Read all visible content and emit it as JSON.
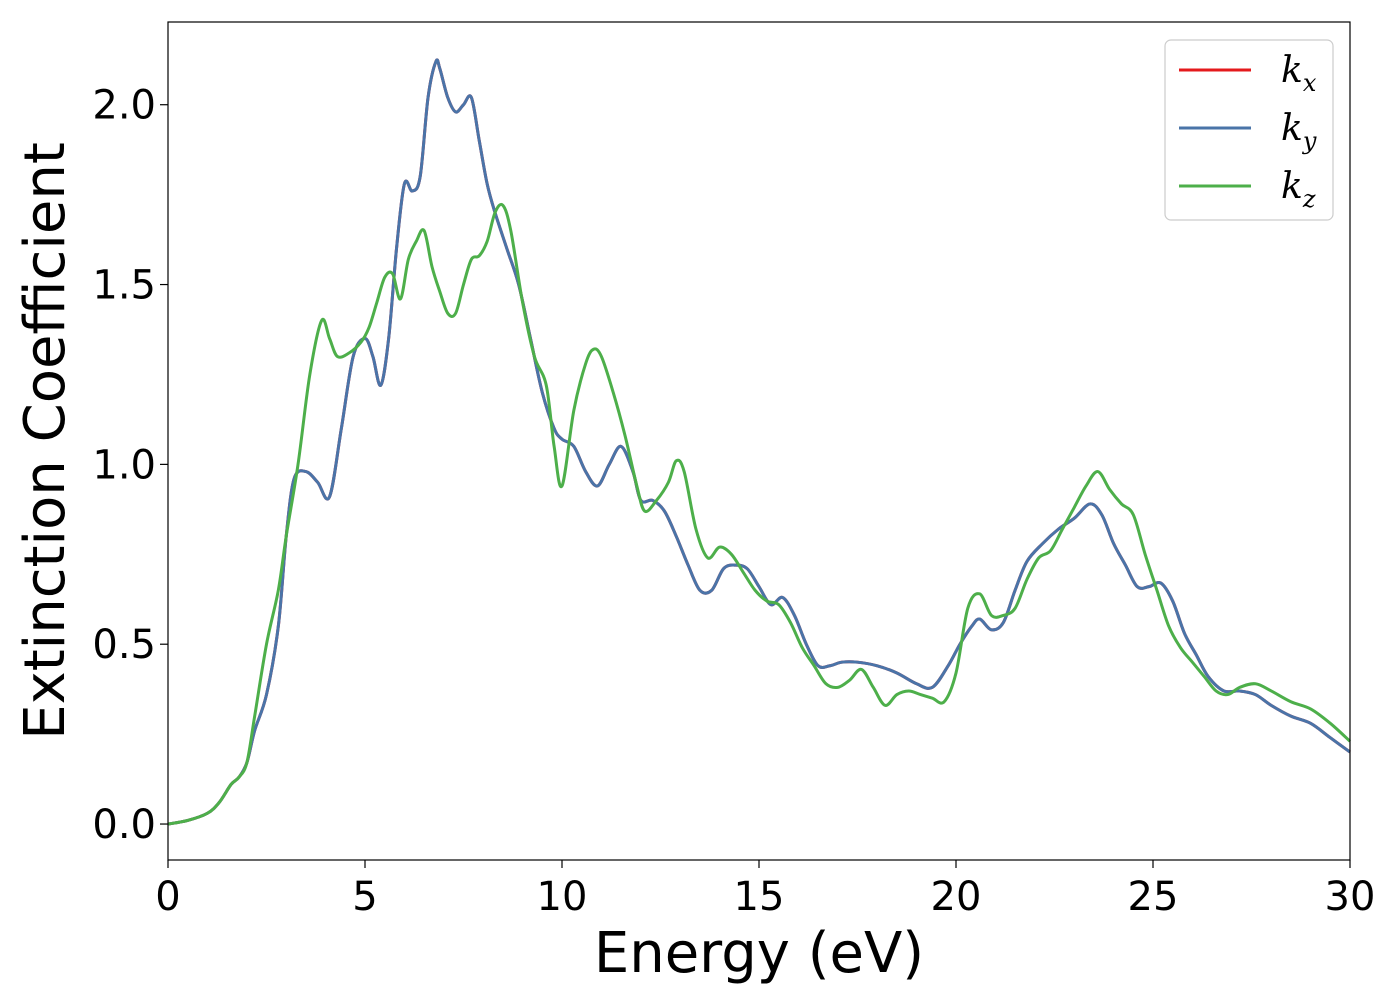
{
  "chart_data": {
    "type": "line",
    "title": "",
    "xlabel": "Energy (eV)",
    "ylabel": "Extinction Coefficient",
    "xlim": [
      0,
      30
    ],
    "ylim": [
      -0.1,
      2.23
    ],
    "xticks": [
      0,
      5,
      10,
      15,
      20,
      25,
      30
    ],
    "xtick_labels": [
      "0",
      "5",
      "10",
      "15",
      "20",
      "25",
      "30"
    ],
    "yticks": [
      0.0,
      0.5,
      1.0,
      1.5,
      2.0
    ],
    "ytick_labels": [
      "0.0",
      "0.5",
      "1.0",
      "1.5",
      "2.0"
    ],
    "grid": false,
    "legend_position": "top-right",
    "colors": {
      "k_x": "#e41a1c",
      "k_y": "#4a74a8",
      "k_z": "#4daf4a"
    },
    "series": [
      {
        "name": "k_x",
        "legend_base": "k",
        "legend_sub": "x",
        "color": "#e41a1c",
        "x": [
          0,
          0.5,
          1.0,
          1.3,
          1.6,
          1.8,
          2.0,
          2.2,
          2.5,
          2.8,
          3.0,
          3.2,
          3.5,
          3.8,
          4.1,
          4.4,
          4.7,
          5.0,
          5.2,
          5.4,
          5.6,
          5.8,
          6.0,
          6.2,
          6.4,
          6.6,
          6.8,
          6.9,
          7.1,
          7.3,
          7.5,
          7.7,
          7.9,
          8.1,
          8.3,
          8.6,
          8.9,
          9.2,
          9.5,
          9.8,
          10.0,
          10.3,
          10.6,
          10.9,
          11.2,
          11.5,
          11.8,
          12.0,
          12.3,
          12.6,
          12.9,
          13.2,
          13.5,
          13.8,
          14.1,
          14.4,
          14.7,
          15.0,
          15.3,
          15.6,
          15.9,
          16.2,
          16.5,
          16.8,
          17.1,
          17.5,
          18.0,
          18.5,
          19.0,
          19.4,
          19.8,
          20.1,
          20.4,
          20.6,
          20.9,
          21.2,
          21.5,
          21.8,
          22.2,
          22.6,
          23.0,
          23.4,
          23.7,
          24.0,
          24.3,
          24.6,
          24.9,
          25.2,
          25.5,
          25.8,
          26.1,
          26.4,
          26.8,
          27.2,
          27.6,
          28.0,
          28.5,
          29.0,
          29.5,
          30.0
        ],
        "y": [
          0.0,
          0.01,
          0.03,
          0.06,
          0.11,
          0.13,
          0.17,
          0.26,
          0.36,
          0.55,
          0.8,
          0.96,
          0.98,
          0.95,
          0.91,
          1.1,
          1.3,
          1.35,
          1.3,
          1.22,
          1.35,
          1.6,
          1.78,
          1.76,
          1.8,
          2.02,
          2.12,
          2.1,
          2.02,
          1.98,
          2.0,
          2.02,
          1.9,
          1.78,
          1.7,
          1.6,
          1.5,
          1.35,
          1.2,
          1.1,
          1.07,
          1.05,
          0.98,
          0.94,
          1.0,
          1.05,
          0.98,
          0.9,
          0.9,
          0.87,
          0.8,
          0.72,
          0.65,
          0.65,
          0.71,
          0.72,
          0.71,
          0.66,
          0.61,
          0.63,
          0.58,
          0.5,
          0.44,
          0.44,
          0.45,
          0.45,
          0.44,
          0.42,
          0.39,
          0.38,
          0.44,
          0.5,
          0.55,
          0.57,
          0.54,
          0.56,
          0.65,
          0.73,
          0.78,
          0.82,
          0.85,
          0.89,
          0.86,
          0.78,
          0.72,
          0.66,
          0.66,
          0.67,
          0.62,
          0.53,
          0.47,
          0.41,
          0.37,
          0.37,
          0.36,
          0.33,
          0.3,
          0.28,
          0.24,
          0.2
        ]
      },
      {
        "name": "k_y",
        "legend_base": "k",
        "legend_sub": "y",
        "color": "#4a74a8",
        "x": [
          0,
          0.5,
          1.0,
          1.3,
          1.6,
          1.8,
          2.0,
          2.2,
          2.5,
          2.8,
          3.0,
          3.2,
          3.5,
          3.8,
          4.1,
          4.4,
          4.7,
          5.0,
          5.2,
          5.4,
          5.6,
          5.8,
          6.0,
          6.2,
          6.4,
          6.6,
          6.8,
          6.9,
          7.1,
          7.3,
          7.5,
          7.7,
          7.9,
          8.1,
          8.3,
          8.6,
          8.9,
          9.2,
          9.5,
          9.8,
          10.0,
          10.3,
          10.6,
          10.9,
          11.2,
          11.5,
          11.8,
          12.0,
          12.3,
          12.6,
          12.9,
          13.2,
          13.5,
          13.8,
          14.1,
          14.4,
          14.7,
          15.0,
          15.3,
          15.6,
          15.9,
          16.2,
          16.5,
          16.8,
          17.1,
          17.5,
          18.0,
          18.5,
          19.0,
          19.4,
          19.8,
          20.1,
          20.4,
          20.6,
          20.9,
          21.2,
          21.5,
          21.8,
          22.2,
          22.6,
          23.0,
          23.4,
          23.7,
          24.0,
          24.3,
          24.6,
          24.9,
          25.2,
          25.5,
          25.8,
          26.1,
          26.4,
          26.8,
          27.2,
          27.6,
          28.0,
          28.5,
          29.0,
          29.5,
          30.0
        ],
        "y": [
          0.0,
          0.01,
          0.03,
          0.06,
          0.11,
          0.13,
          0.17,
          0.26,
          0.36,
          0.55,
          0.8,
          0.96,
          0.98,
          0.95,
          0.91,
          1.1,
          1.3,
          1.35,
          1.3,
          1.22,
          1.35,
          1.6,
          1.78,
          1.76,
          1.8,
          2.02,
          2.12,
          2.1,
          2.02,
          1.98,
          2.0,
          2.02,
          1.9,
          1.78,
          1.7,
          1.6,
          1.5,
          1.35,
          1.2,
          1.1,
          1.07,
          1.05,
          0.98,
          0.94,
          1.0,
          1.05,
          0.98,
          0.9,
          0.9,
          0.87,
          0.8,
          0.72,
          0.65,
          0.65,
          0.71,
          0.72,
          0.71,
          0.66,
          0.61,
          0.63,
          0.58,
          0.5,
          0.44,
          0.44,
          0.45,
          0.45,
          0.44,
          0.42,
          0.39,
          0.38,
          0.44,
          0.5,
          0.55,
          0.57,
          0.54,
          0.56,
          0.65,
          0.73,
          0.78,
          0.82,
          0.85,
          0.89,
          0.86,
          0.78,
          0.72,
          0.66,
          0.66,
          0.67,
          0.62,
          0.53,
          0.47,
          0.41,
          0.37,
          0.37,
          0.36,
          0.33,
          0.3,
          0.28,
          0.24,
          0.2
        ]
      },
      {
        "name": "k_z",
        "legend_base": "k",
        "legend_sub": "z",
        "color": "#4daf4a",
        "x": [
          0,
          0.5,
          1.0,
          1.3,
          1.6,
          1.8,
          2.0,
          2.2,
          2.5,
          2.8,
          3.0,
          3.3,
          3.6,
          3.9,
          4.1,
          4.3,
          4.6,
          4.9,
          5.1,
          5.3,
          5.5,
          5.7,
          5.9,
          6.1,
          6.3,
          6.5,
          6.7,
          6.9,
          7.1,
          7.3,
          7.5,
          7.7,
          7.9,
          8.1,
          8.3,
          8.5,
          8.7,
          9.0,
          9.3,
          9.6,
          9.8,
          10.0,
          10.3,
          10.6,
          10.8,
          11.0,
          11.3,
          11.6,
          11.9,
          12.1,
          12.4,
          12.7,
          12.9,
          13.1,
          13.4,
          13.7,
          14.0,
          14.3,
          14.6,
          14.9,
          15.2,
          15.5,
          15.8,
          16.1,
          16.4,
          16.7,
          17.0,
          17.3,
          17.6,
          17.9,
          18.2,
          18.5,
          18.8,
          19.1,
          19.4,
          19.7,
          20.0,
          20.3,
          20.6,
          20.9,
          21.2,
          21.5,
          21.8,
          22.1,
          22.4,
          22.7,
          23.0,
          23.3,
          23.6,
          23.9,
          24.2,
          24.5,
          24.8,
          25.1,
          25.4,
          25.7,
          26.0,
          26.3,
          26.6,
          26.9,
          27.2,
          27.6,
          28.0,
          28.5,
          29.0,
          29.5,
          30.0
        ],
        "y": [
          0.0,
          0.01,
          0.03,
          0.06,
          0.11,
          0.13,
          0.17,
          0.3,
          0.5,
          0.65,
          0.8,
          1.0,
          1.25,
          1.4,
          1.35,
          1.3,
          1.31,
          1.34,
          1.38,
          1.45,
          1.52,
          1.53,
          1.46,
          1.57,
          1.62,
          1.65,
          1.55,
          1.48,
          1.42,
          1.42,
          1.5,
          1.57,
          1.58,
          1.62,
          1.7,
          1.72,
          1.65,
          1.45,
          1.3,
          1.22,
          1.05,
          0.94,
          1.15,
          1.28,
          1.32,
          1.3,
          1.2,
          1.08,
          0.94,
          0.87,
          0.9,
          0.95,
          1.01,
          0.98,
          0.82,
          0.74,
          0.77,
          0.75,
          0.7,
          0.65,
          0.62,
          0.61,
          0.56,
          0.49,
          0.44,
          0.39,
          0.38,
          0.4,
          0.43,
          0.38,
          0.33,
          0.36,
          0.37,
          0.36,
          0.35,
          0.34,
          0.42,
          0.6,
          0.64,
          0.58,
          0.58,
          0.6,
          0.68,
          0.74,
          0.76,
          0.82,
          0.88,
          0.94,
          0.98,
          0.93,
          0.89,
          0.86,
          0.75,
          0.65,
          0.55,
          0.49,
          0.45,
          0.41,
          0.37,
          0.36,
          0.38,
          0.39,
          0.37,
          0.34,
          0.32,
          0.28,
          0.23
        ]
      }
    ]
  }
}
